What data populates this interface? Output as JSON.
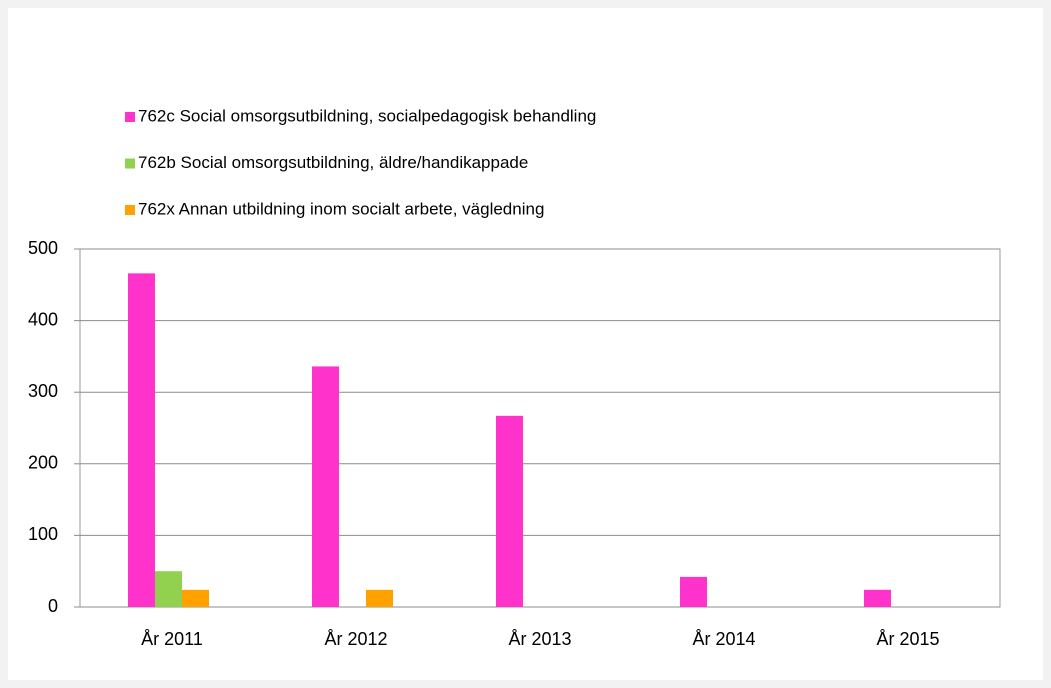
{
  "chart_data": {
    "type": "bar",
    "categories": [
      "År 2011",
      "År 2012",
      "År 2013",
      "År 2014",
      "År 2015"
    ],
    "series": [
      {
        "name": "762c Social omsorgsutbildning, socialpedagogisk behandling",
        "color": "#ff33cc",
        "values": [
          466,
          336,
          267,
          42,
          24
        ]
      },
      {
        "name": "762b Social omsorgsutbildning, äldre/handikappade",
        "color": "#92d050",
        "values": [
          50,
          0,
          0,
          0,
          0
        ]
      },
      {
        "name": "762x Annan utbildning inom socialt arbete, vägledning",
        "color": "#ffa200",
        "values": [
          24,
          24,
          0,
          0,
          0
        ]
      }
    ],
    "ylim": [
      0,
      500
    ],
    "yticks": [
      0,
      100,
      200,
      300,
      400,
      500
    ],
    "grid": true,
    "legend": "top"
  }
}
